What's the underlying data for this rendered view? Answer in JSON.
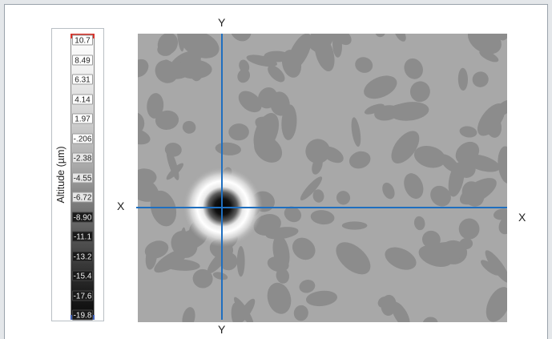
{
  "colors": {
    "background": "#e4e7ea",
    "map_base": "#a8a8a8",
    "map_patch": "#8c8c8c",
    "axis_line": "#1f6fc0",
    "scale_max_cap": "#d8342c",
    "scale_min_cap": "#3f5fb8"
  },
  "scale": {
    "title": "Altitude (µm)",
    "ticks": [
      "10.7",
      "8.49",
      "6.31",
      "4.14",
      "1.97",
      "-.206",
      "-2.38",
      "-4.55",
      "-6.72",
      "-8.90",
      "-11.1",
      "-13.2",
      "-15.4",
      "-17.6",
      "-19.8"
    ]
  },
  "axes": {
    "y_top": "Y",
    "y_bottom": "Y",
    "x_left": "X",
    "x_right": "X"
  },
  "map": {
    "feature": "crater-pit"
  }
}
